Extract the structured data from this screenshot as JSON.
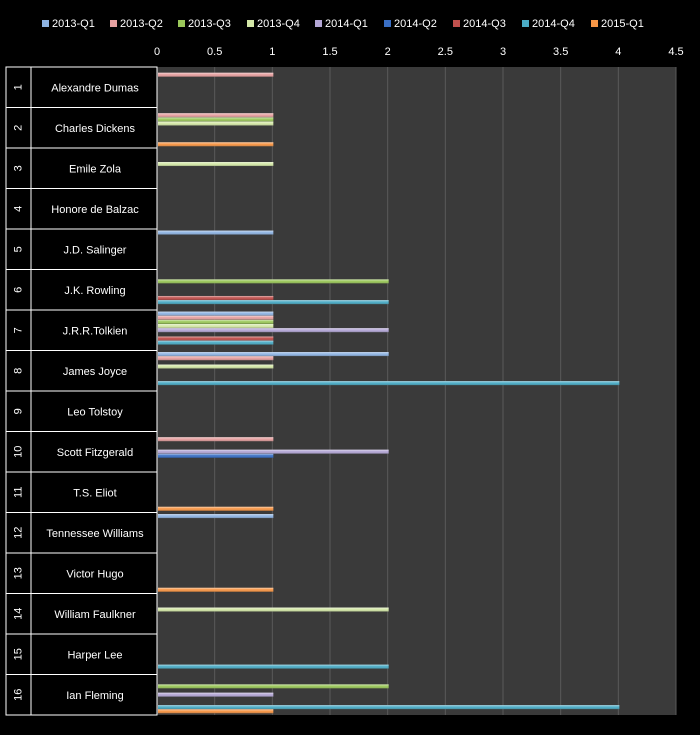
{
  "chart_data": {
    "type": "bar",
    "orientation": "horizontal",
    "title": "",
    "xlabel": "",
    "ylabel": "",
    "xlim": [
      0,
      4.5
    ],
    "x_ticks": [
      "0",
      "0.5",
      "1",
      "1.5",
      "2",
      "2.5",
      "3",
      "3.5",
      "4",
      "4.5"
    ],
    "grid": true,
    "legend_position": "top",
    "categories": [
      {
        "index": "1",
        "name": "Alexandre Dumas"
      },
      {
        "index": "2",
        "name": "Charles Dickens"
      },
      {
        "index": "3",
        "name": "Emile Zola"
      },
      {
        "index": "4",
        "name": "Honore de Balzac"
      },
      {
        "index": "5",
        "name": "J.D. Salinger"
      },
      {
        "index": "6",
        "name": "J.K. Rowling"
      },
      {
        "index": "7",
        "name": "J.R.R.Tolkien"
      },
      {
        "index": "8",
        "name": "James Joyce"
      },
      {
        "index": "9",
        "name": "Leo Tolstoy"
      },
      {
        "index": "10",
        "name": "Scott Fitzgerald"
      },
      {
        "index": "11",
        "name": "T.S. Eliot"
      },
      {
        "index": "12",
        "name": "Tennessee Williams"
      },
      {
        "index": "13",
        "name": "Victor Hugo"
      },
      {
        "index": "14",
        "name": "William Faulkner"
      },
      {
        "index": "15",
        "name": "Harper Lee"
      },
      {
        "index": "16",
        "name": "Ian Fleming"
      }
    ],
    "series": [
      {
        "name": "2013-Q1",
        "color": "#8fb4e3",
        "values": [
          0,
          0,
          0,
          0,
          1,
          0,
          1,
          2,
          0,
          0,
          0,
          1,
          0,
          0,
          0,
          0
        ]
      },
      {
        "name": "2013-Q2",
        "color": "#e6a0a0",
        "values": [
          1,
          1,
          0,
          0,
          0,
          0,
          1,
          1,
          0,
          1,
          0,
          0,
          0,
          0,
          0,
          0
        ]
      },
      {
        "name": "2013-Q3",
        "color": "#9bc85a",
        "values": [
          0,
          1,
          0,
          0,
          0,
          2,
          1,
          0,
          0,
          0,
          0,
          0,
          0,
          0,
          0,
          2
        ]
      },
      {
        "name": "2013-Q4",
        "color": "#d4e8a8",
        "values": [
          0,
          1,
          1,
          0,
          0,
          0,
          1,
          1,
          0,
          0,
          0,
          0,
          0,
          2,
          0,
          0
        ]
      },
      {
        "name": "2014-Q1",
        "color": "#b4a7d6",
        "values": [
          0,
          0,
          0,
          0,
          0,
          0,
          2,
          0,
          0,
          2,
          0,
          0,
          0,
          0,
          0,
          1
        ]
      },
      {
        "name": "2014-Q2",
        "color": "#3a6fc4",
        "values": [
          0,
          0,
          0,
          0,
          0,
          0,
          0,
          0,
          0,
          1,
          0,
          0,
          0,
          0,
          0,
          0
        ]
      },
      {
        "name": "2014-Q3",
        "color": "#c0504d",
        "values": [
          0,
          0,
          0,
          0,
          0,
          1,
          1,
          0,
          0,
          0,
          0,
          0,
          0,
          0,
          0,
          0
        ]
      },
      {
        "name": "2014-Q4",
        "color": "#4bacc6",
        "values": [
          0,
          0,
          0,
          0,
          0,
          2,
          1,
          4,
          0,
          0,
          0,
          0,
          0,
          0,
          2,
          4
        ]
      },
      {
        "name": "2015-Q1",
        "color": "#f79646",
        "values": [
          0,
          1,
          0,
          0,
          0,
          0,
          0,
          0,
          0,
          0,
          1,
          0,
          1,
          0,
          0,
          1
        ]
      }
    ]
  }
}
